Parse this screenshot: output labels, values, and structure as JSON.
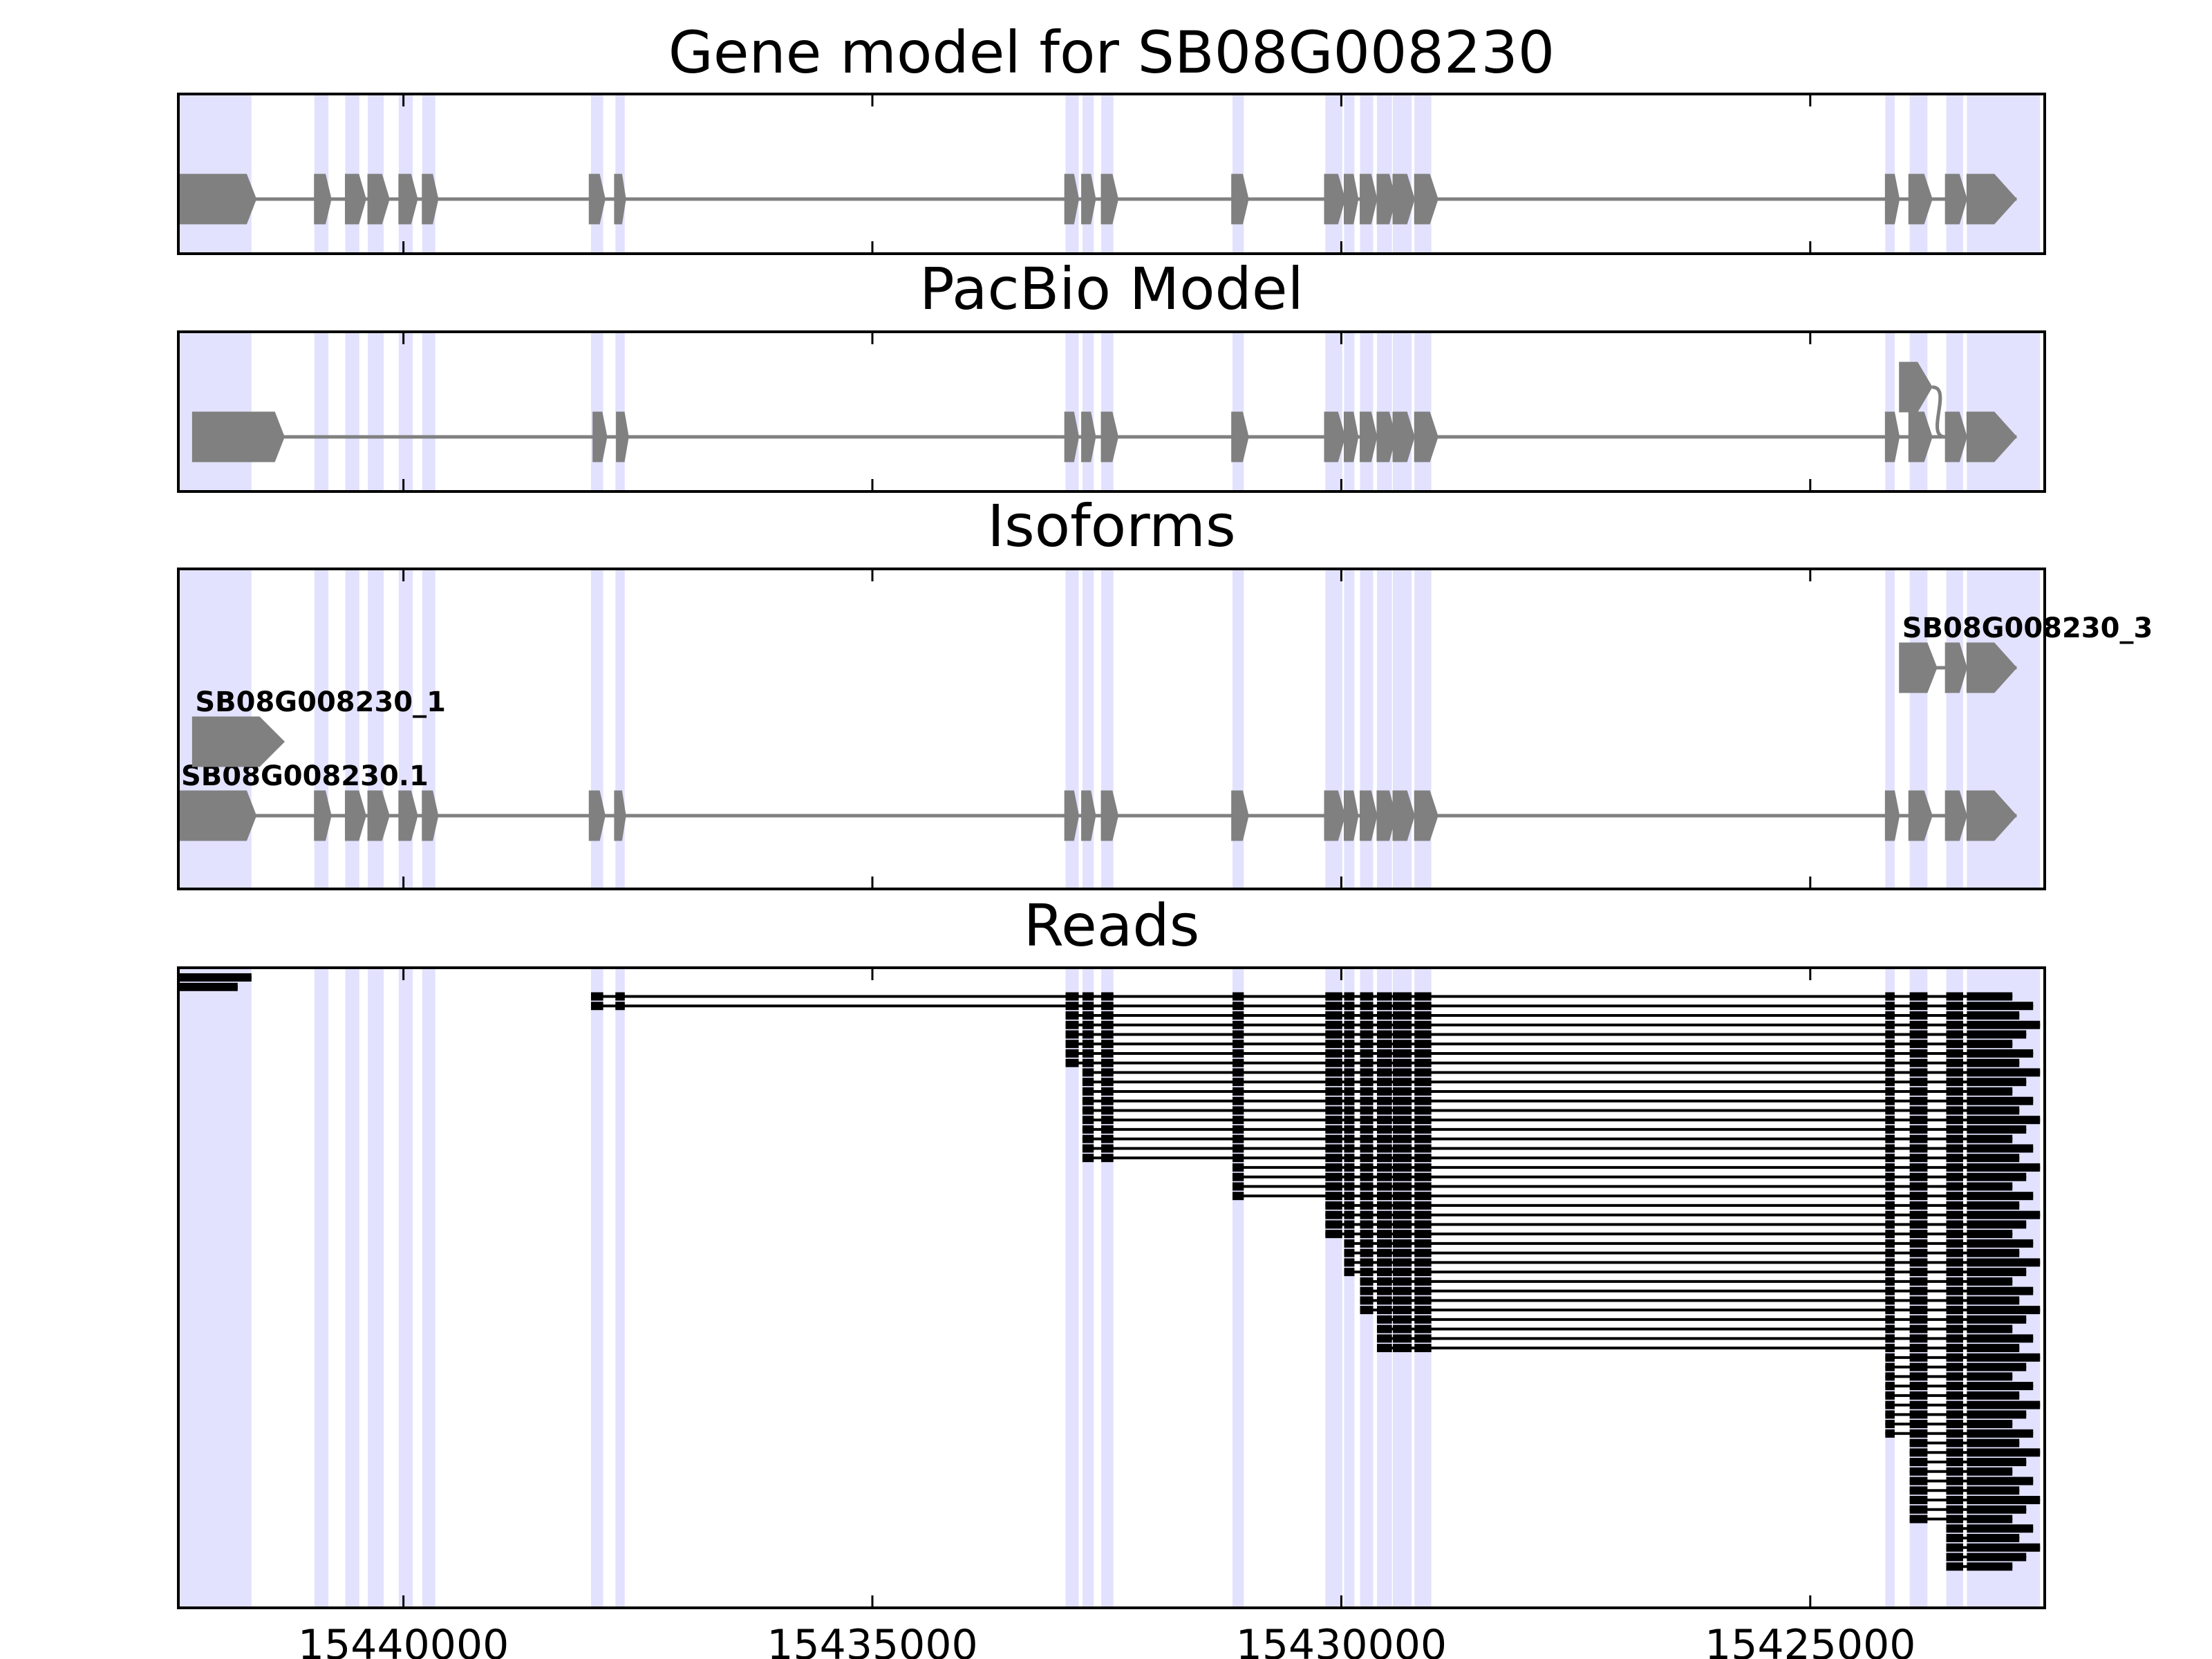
{
  "chart_data": {
    "type": "gene-track",
    "x_axis": {
      "reversed": true,
      "xlim": [
        15442400,
        15422500
      ],
      "ticks": [
        15440000,
        15435000,
        15430000,
        15425000
      ],
      "tick_labels": [
        "15440000",
        "15435000",
        "15430000",
        "15425000"
      ]
    },
    "highlight_color": "#e2e2ff",
    "feature_color": "#808080",
    "read_color": "#000000",
    "exon_highlights": [
      [
        15442400,
        15441620
      ],
      [
        15440950,
        15440800
      ],
      [
        15440620,
        15440470
      ],
      [
        15440380,
        15440210
      ],
      [
        15440050,
        15439900
      ],
      [
        15439800,
        15439660
      ],
      [
        15438000,
        15437870
      ],
      [
        15437740,
        15437640
      ],
      [
        15432940,
        15432800
      ],
      [
        15432760,
        15432640
      ],
      [
        15432560,
        15432430
      ],
      [
        15431160,
        15431040
      ],
      [
        15430170,
        15429990
      ],
      [
        15429970,
        15429860
      ],
      [
        15429800,
        15429660
      ],
      [
        15429620,
        15429460
      ],
      [
        15429450,
        15429250
      ],
      [
        15429220,
        15429040
      ],
      [
        15424200,
        15424100
      ],
      [
        15423940,
        15423750
      ],
      [
        15423550,
        15423370
      ],
      [
        15423330,
        15422550
      ]
    ],
    "panels": [
      {
        "title": "Gene model for SB08G008230",
        "tracks": [
          {
            "label": "",
            "row": 0,
            "exons": [
              [
                15442400,
                15441570
              ],
              [
                15440950,
                15440770
              ],
              [
                15440620,
                15440400
              ],
              [
                15440380,
                15440150
              ],
              [
                15440050,
                15439850
              ],
              [
                15439800,
                15439630
              ],
              [
                15438020,
                15437850
              ],
              [
                15437750,
                15437630
              ],
              [
                15432950,
                15432800
              ],
              [
                15432770,
                15432620
              ],
              [
                15432560,
                15432380
              ],
              [
                15431170,
                15430990
              ],
              [
                15430180,
                15429960
              ],
              [
                15429970,
                15429820
              ],
              [
                15429800,
                15429620
              ],
              [
                15429620,
                15429420
              ],
              [
                15429450,
                15429220
              ],
              [
                15429220,
                15428970
              ],
              [
                15424200,
                15424050
              ],
              [
                15423950,
                15423700
              ],
              [
                15423560,
                15423330
              ],
              [
                15423330,
                15422800
              ]
            ]
          }
        ]
      },
      {
        "title": "PacBio Model",
        "tracks": [
          {
            "label": "",
            "row": 0,
            "exons": [
              [
                15442250,
                15441270
              ],
              [
                15437980,
                15437830
              ],
              [
                15437730,
                15437600
              ],
              [
                15432950,
                15432800
              ],
              [
                15432770,
                15432620
              ],
              [
                15432560,
                15432380
              ],
              [
                15431170,
                15430990
              ],
              [
                15430180,
                15429960
              ],
              [
                15429970,
                15429820
              ],
              [
                15429800,
                15429620
              ],
              [
                15429620,
                15429420
              ],
              [
                15429450,
                15429220
              ],
              [
                15429220,
                15428970
              ],
              [
                15424200,
                15424050
              ],
              [
                15423950,
                15423700
              ],
              [
                15423560,
                15423330
              ],
              [
                15423330,
                15422800
              ]
            ]
          },
          {
            "label": "",
            "row": 1,
            "exons": [
              [
                15424050,
                15423700
              ]
            ],
            "joins_to": [
              15423560,
              1
            ]
          }
        ]
      },
      {
        "title": "Isoforms",
        "tracks": [
          {
            "label": "SB08G008230.1",
            "row": 0,
            "exons": [
              [
                15442400,
                15441570
              ],
              [
                15440950,
                15440770
              ],
              [
                15440620,
                15440400
              ],
              [
                15440380,
                15440150
              ],
              [
                15440050,
                15439850
              ],
              [
                15439800,
                15439630
              ],
              [
                15438020,
                15437850
              ],
              [
                15437750,
                15437630
              ],
              [
                15432950,
                15432800
              ],
              [
                15432770,
                15432620
              ],
              [
                15432560,
                15432380
              ],
              [
                15431170,
                15430990
              ],
              [
                15430180,
                15429960
              ],
              [
                15429970,
                15429820
              ],
              [
                15429800,
                15429620
              ],
              [
                15429620,
                15429420
              ],
              [
                15429450,
                15429220
              ],
              [
                15429220,
                15428970
              ],
              [
                15424200,
                15424050
              ],
              [
                15423950,
                15423700
              ],
              [
                15423560,
                15423330
              ],
              [
                15423330,
                15422800
              ]
            ]
          },
          {
            "label": "SB08G008230_1",
            "row": 1,
            "exons": [
              [
                15442250,
                15441270
              ]
            ]
          },
          {
            "label": "SB08G008230_3",
            "row": 2,
            "exons": [
              [
                15424050,
                15423650
              ],
              [
                15423560,
                15423330
              ],
              [
                15423330,
                15422800
              ]
            ]
          }
        ]
      },
      {
        "title": "Reads",
        "read_rows": 63
      }
    ]
  }
}
